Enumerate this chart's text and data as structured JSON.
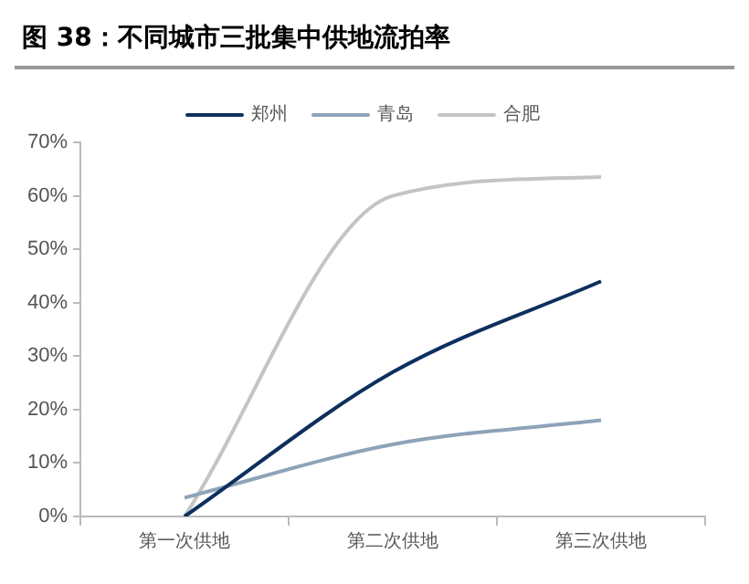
{
  "chart_data": {
    "type": "line",
    "title": "图 38：不同城市三批集中供地流拍率",
    "categories": [
      "第一次供地",
      "第二次供地",
      "第三次供地"
    ],
    "series": [
      {
        "name": "郑州",
        "color": "#0d2f5e",
        "values": [
          0,
          27,
          44
        ]
      },
      {
        "name": "青岛",
        "color": "#8ea3b8",
        "values": [
          3.5,
          13.5,
          18
        ]
      },
      {
        "name": "合肥",
        "color": "#c4c4c4",
        "values": [
          0,
          60,
          63.5
        ]
      }
    ],
    "ylim": [
      0,
      70
    ],
    "yticks": [
      {
        "value": 0,
        "label": "0%"
      },
      {
        "value": 10,
        "label": "10%"
      },
      {
        "value": 20,
        "label": "20%"
      },
      {
        "value": 30,
        "label": "30%"
      },
      {
        "value": 40,
        "label": "40%"
      },
      {
        "value": 50,
        "label": "50%"
      },
      {
        "value": 60,
        "label": "60%"
      },
      {
        "value": 70,
        "label": "70%"
      }
    ],
    "grid": false,
    "legend": "top",
    "marker": "none",
    "line_style": "solid"
  }
}
